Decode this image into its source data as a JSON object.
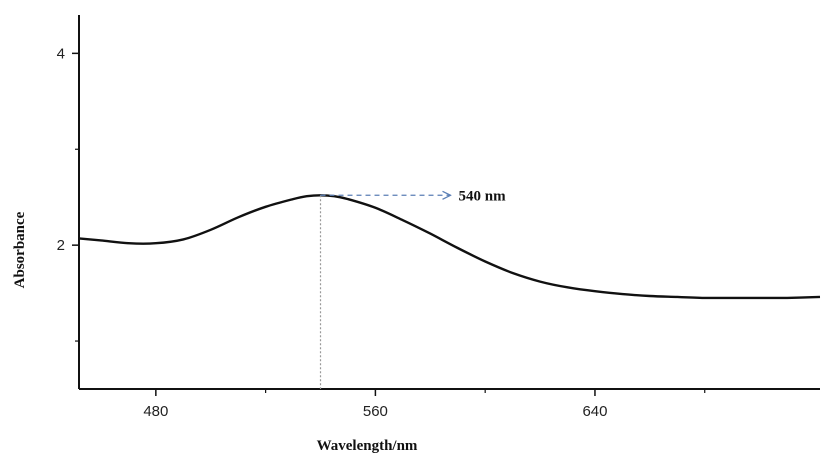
{
  "chart_data": {
    "type": "line",
    "title": "",
    "xlabel": "Wavelength/nm",
    "ylabel": "Absorbance",
    "xlim": [
      452,
      722
    ],
    "ylim": [
      0.5,
      4.4
    ],
    "x_ticks": [
      480,
      560,
      640
    ],
    "x_minor_ticks": [
      520,
      600,
      680
    ],
    "y_ticks": [
      2,
      4
    ],
    "y_minor_ticks": [
      1,
      3
    ],
    "grid": false,
    "legend": "none",
    "series": [
      {
        "color": "#111111",
        "x": [
          452,
          460,
          470,
          480,
          490,
          500,
          510,
          520,
          530,
          535,
          540,
          545,
          550,
          560,
          570,
          580,
          590,
          600,
          610,
          620,
          630,
          640,
          650,
          660,
          670,
          680,
          690,
          700,
          710,
          722
        ],
        "y": [
          2.07,
          2.05,
          2.02,
          2.02,
          2.06,
          2.16,
          2.29,
          2.4,
          2.48,
          2.51,
          2.52,
          2.51,
          2.48,
          2.39,
          2.26,
          2.12,
          1.97,
          1.83,
          1.71,
          1.62,
          1.56,
          1.52,
          1.49,
          1.47,
          1.46,
          1.45,
          1.45,
          1.45,
          1.45,
          1.46
        ]
      }
    ],
    "annotations": [
      {
        "label": "540 nm",
        "x": 540,
        "y": 2.52,
        "arrow_color": "#5b7fb5",
        "drop_line_color": "#999999"
      }
    ]
  }
}
